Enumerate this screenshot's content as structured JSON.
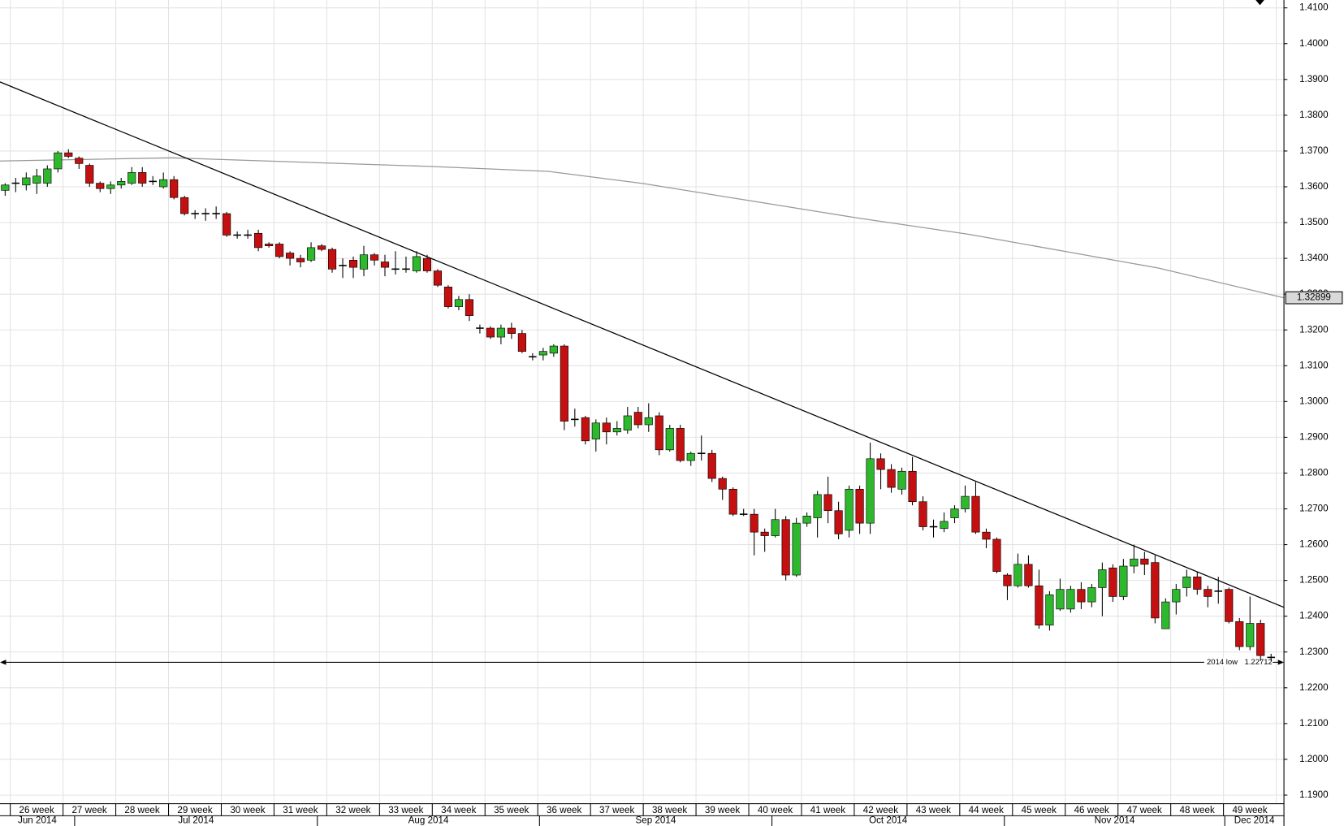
{
  "chart_data": {
    "type": "candlestick",
    "up_color": "#2db82d",
    "down_color": "#c41010",
    "flat_color": "#000000",
    "grid": true,
    "ylim": [
      1.1876,
      1.4122
    ],
    "yticks": [
      {
        "value": 1.41,
        "label": "1.4100"
      },
      {
        "value": 1.4,
        "label": "1.4000"
      },
      {
        "value": 1.39,
        "label": "1.3900"
      },
      {
        "value": 1.38,
        "label": "1.3800"
      },
      {
        "value": 1.37,
        "label": "1.3700"
      },
      {
        "value": 1.36,
        "label": "1.3600"
      },
      {
        "value": 1.35,
        "label": "1.3500"
      },
      {
        "value": 1.34,
        "label": "1.3400"
      },
      {
        "value": 1.33,
        "label": "1.3300"
      },
      {
        "value": 1.32,
        "label": "1.3200"
      },
      {
        "value": 1.31,
        "label": "1.3100"
      },
      {
        "value": 1.3,
        "label": "1.3000"
      },
      {
        "value": 1.29,
        "label": "1.2900"
      },
      {
        "value": 1.28,
        "label": "1.2800"
      },
      {
        "value": 1.27,
        "label": "1.2700"
      },
      {
        "value": 1.26,
        "label": "1.2600"
      },
      {
        "value": 1.25,
        "label": "1.2500"
      },
      {
        "value": 1.24,
        "label": "1.2400"
      },
      {
        "value": 1.23,
        "label": "1.2300"
      },
      {
        "value": 1.22,
        "label": "1.2200"
      },
      {
        "value": 1.21,
        "label": "1.2100"
      },
      {
        "value": 1.2,
        "label": "1.2000"
      },
      {
        "value": 1.19,
        "label": "1.1900"
      }
    ],
    "week_labels": [
      "26 week",
      "27 week",
      "28 week",
      "29 week",
      "30 week",
      "31 week",
      "32 week",
      "33 week",
      "34 week",
      "35 week",
      "36 week",
      "37 week",
      "38 week",
      "39 week",
      "40 week",
      "41 week",
      "42 week",
      "43 week",
      "44 week",
      "45 week",
      "46 week",
      "47 week",
      "48 week",
      "49 week"
    ],
    "month_labels": [
      "Jun 2014",
      "Jul 2014",
      "Aug 2014",
      "Sep 2014",
      "Oct 2014",
      "Nov 2014",
      "Dec 2014"
    ],
    "open": [
      1.359,
      1.361,
      1.3605,
      1.361,
      1.361,
      1.365,
      1.3695,
      1.368,
      1.366,
      1.361,
      1.3595,
      1.3605,
      1.361,
      1.364,
      1.3615,
      1.36,
      1.362,
      1.357,
      1.3525,
      1.3525,
      1.3525,
      1.3525,
      1.3465,
      1.3465,
      1.347,
      1.344,
      1.344,
      1.3415,
      1.34,
      1.3395,
      1.3435,
      1.3425,
      1.338,
      1.3395,
      1.337,
      1.341,
      1.339,
      1.337,
      1.337,
      1.3365,
      1.34,
      1.3365,
      1.332,
      1.3265,
      1.3285,
      1.3205,
      1.3205,
      1.318,
      1.3205,
      1.319,
      1.3125,
      1.313,
      1.3135,
      1.3155,
      1.295,
      1.2955,
      1.2895,
      1.294,
      1.2915,
      1.292,
      1.297,
      1.2935,
      1.296,
      1.2865,
      1.2925,
      1.2835,
      1.2855,
      1.2855,
      1.2785,
      1.2755,
      1.2685,
      1.2685,
      1.2635,
      1.2625,
      1.267,
      1.2515,
      1.266,
      1.2675,
      1.274,
      1.2695,
      1.264,
      1.2755,
      1.266,
      1.284,
      1.281,
      1.2755,
      1.2805,
      1.272,
      1.265,
      1.2645,
      1.2675,
      1.27,
      1.2735,
      1.2635,
      1.2615,
      1.2515,
      1.2485,
      1.2545,
      1.2485,
      1.2375,
      1.242,
      1.242,
      1.2475,
      1.244,
      1.248,
      1.2535,
      1.2455,
      1.254,
      1.256,
      1.255,
      1.2365,
      1.244,
      1.248,
      1.251,
      1.2475,
      1.247,
      1.2475,
      1.2385,
      1.2315,
      1.238,
      1.2285
    ],
    "high": [
      1.361,
      1.3625,
      1.364,
      1.365,
      1.366,
      1.37,
      1.3705,
      1.3685,
      1.3665,
      1.3615,
      1.3615,
      1.3625,
      1.3655,
      1.3655,
      1.363,
      1.364,
      1.363,
      1.3575,
      1.3535,
      1.354,
      1.3545,
      1.353,
      1.3475,
      1.348,
      1.348,
      1.3445,
      1.3445,
      1.342,
      1.341,
      1.3445,
      1.344,
      1.343,
      1.34,
      1.3405,
      1.3435,
      1.3415,
      1.341,
      1.342,
      1.3405,
      1.342,
      1.341,
      1.337,
      1.3325,
      1.3295,
      1.33,
      1.3215,
      1.321,
      1.3215,
      1.322,
      1.32,
      1.3135,
      1.315,
      1.316,
      1.316,
      1.298,
      1.296,
      1.295,
      1.2955,
      1.2945,
      1.2985,
      1.2985,
      1.2995,
      1.297,
      1.2935,
      1.2935,
      1.286,
      1.2905,
      1.2865,
      1.279,
      1.276,
      1.27,
      1.27,
      1.2645,
      1.27,
      1.268,
      1.2675,
      1.269,
      1.275,
      1.279,
      1.272,
      1.2765,
      1.2765,
      1.2885,
      1.2855,
      1.2825,
      1.2815,
      1.2845,
      1.2735,
      1.267,
      1.269,
      1.271,
      1.2765,
      1.2775,
      1.2645,
      1.262,
      1.252,
      1.2575,
      1.257,
      1.253,
      1.247,
      1.2505,
      1.2485,
      1.2495,
      1.249,
      1.255,
      1.2545,
      1.256,
      1.26,
      1.258,
      1.257,
      1.245,
      1.249,
      1.253,
      1.2525,
      1.2485,
      1.251,
      1.248,
      1.2395,
      1.2455,
      1.239,
      1.2295
    ],
    "low": [
      1.3575,
      1.3585,
      1.359,
      1.358,
      1.36,
      1.364,
      1.368,
      1.365,
      1.36,
      1.3585,
      1.358,
      1.3595,
      1.3605,
      1.36,
      1.3605,
      1.3595,
      1.3565,
      1.352,
      1.351,
      1.3505,
      1.351,
      1.346,
      1.3455,
      1.3455,
      1.342,
      1.343,
      1.34,
      1.338,
      1.3375,
      1.339,
      1.342,
      1.336,
      1.3345,
      1.3345,
      1.335,
      1.338,
      1.335,
      1.3355,
      1.336,
      1.336,
      1.336,
      1.332,
      1.326,
      1.3255,
      1.3225,
      1.319,
      1.3175,
      1.316,
      1.3175,
      1.3135,
      1.3115,
      1.3115,
      1.3125,
      1.292,
      1.293,
      1.288,
      1.286,
      1.288,
      1.2905,
      1.291,
      1.2925,
      1.2915,
      1.285,
      1.286,
      1.283,
      1.282,
      1.2835,
      1.2775,
      1.2725,
      1.268,
      1.268,
      1.257,
      1.258,
      1.262,
      1.25,
      1.251,
      1.265,
      1.262,
      1.266,
      1.2615,
      1.262,
      1.263,
      1.263,
      1.2755,
      1.2745,
      1.274,
      1.271,
      1.264,
      1.262,
      1.2635,
      1.266,
      1.269,
      1.263,
      1.259,
      1.252,
      1.2445,
      1.248,
      1.248,
      1.2365,
      1.236,
      1.2415,
      1.241,
      1.242,
      1.2425,
      1.24,
      1.244,
      1.2445,
      1.252,
      1.2515,
      1.238,
      1.2365,
      1.2405,
      1.2455,
      1.246,
      1.2425,
      1.2435,
      1.238,
      1.2305,
      1.2305,
      1.2275,
      1.2275
    ],
    "close": [
      1.3605,
      1.361,
      1.3625,
      1.363,
      1.365,
      1.3695,
      1.3685,
      1.3665,
      1.361,
      1.3595,
      1.3605,
      1.3615,
      1.364,
      1.361,
      1.3615,
      1.362,
      1.357,
      1.3525,
      1.3525,
      1.3525,
      1.3525,
      1.3465,
      1.3465,
      1.3465,
      1.343,
      1.3435,
      1.3405,
      1.34,
      1.339,
      1.343,
      1.3425,
      1.337,
      1.338,
      1.3375,
      1.341,
      1.3395,
      1.3375,
      1.337,
      1.337,
      1.3405,
      1.3365,
      1.3325,
      1.3265,
      1.3285,
      1.324,
      1.3205,
      1.318,
      1.3205,
      1.319,
      1.314,
      1.3125,
      1.314,
      1.3155,
      1.2945,
      1.295,
      1.289,
      1.294,
      1.2915,
      1.2925,
      1.296,
      1.2935,
      1.2955,
      1.2865,
      1.2925,
      1.2835,
      1.2855,
      1.2855,
      1.2785,
      1.2755,
      1.2685,
      1.2685,
      1.2635,
      1.2625,
      1.267,
      1.2515,
      1.266,
      1.268,
      1.274,
      1.2695,
      1.263,
      1.2755,
      1.266,
      1.284,
      1.281,
      1.276,
      1.2805,
      1.272,
      1.265,
      1.265,
      1.2665,
      1.27,
      1.2735,
      1.2635,
      1.2615,
      1.2525,
      1.2485,
      1.2545,
      1.2485,
      1.2375,
      1.246,
      1.2475,
      1.2475,
      1.244,
      1.248,
      1.253,
      1.2455,
      1.254,
      1.256,
      1.2545,
      1.2395,
      1.244,
      1.2475,
      1.251,
      1.2475,
      1.2455,
      1.247,
      1.2385,
      1.2315,
      1.238,
      1.229,
      1.2285
    ],
    "lines": [
      {
        "color": "#999999",
        "x": [
          -0.49,
          15.8,
          40.2,
          51.5,
          60.5,
          70.2,
          80.8,
          91.4,
          101.1,
          109.3,
          121.2
        ],
        "values": [
          1.3672,
          1.3681,
          1.3657,
          1.3643,
          1.3609,
          1.3563,
          1.3513,
          1.3467,
          1.3416,
          1.3373,
          1.32899
        ]
      },
      {
        "color": "#000000",
        "x": [
          -0.49,
          121.2
        ],
        "values": [
          1.3893,
          1.2425
        ]
      }
    ],
    "reference_lines": [
      {
        "label": "2014 low",
        "value": 1.22712
      }
    ]
  }
}
